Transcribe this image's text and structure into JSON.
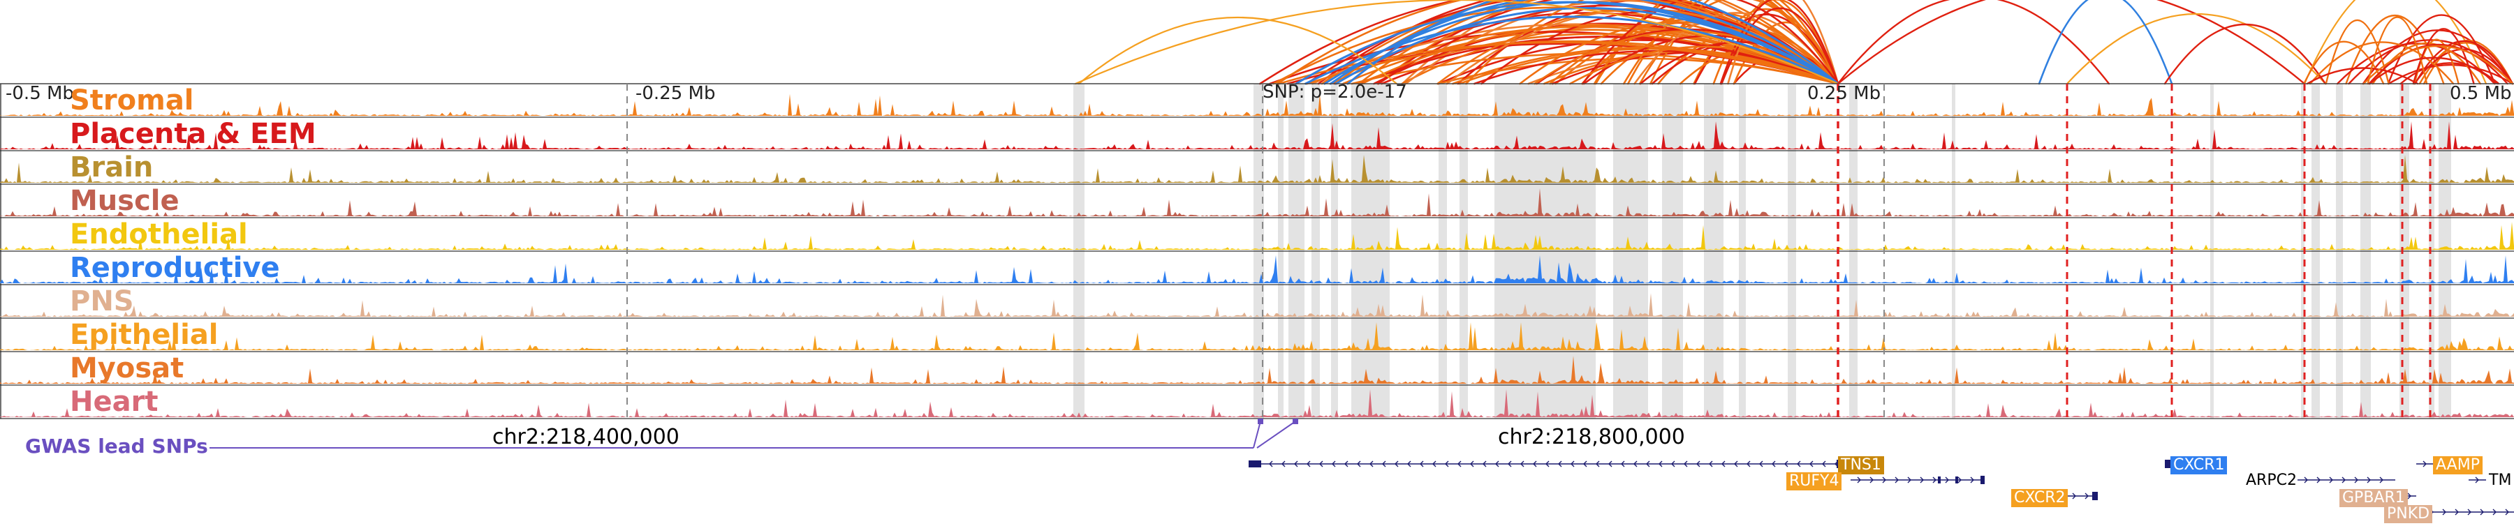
{
  "axis_ticks": [
    {
      "label": "-0.5 Mb",
      "frac": 0.0
    },
    {
      "label": "-0.25 Mb",
      "frac": 0.25
    },
    {
      "label": "0.25 Mb",
      "frac": 0.75
    },
    {
      "label": "0.5 Mb",
      "frac": 1.0
    }
  ],
  "snp_label": "SNP: p=2.0e-17",
  "tracks": [
    {
      "name": "Stromal",
      "color": "#f07f1d",
      "seed": 11
    },
    {
      "name": "Placenta & EEM",
      "color": "#d7191c",
      "seed": 23
    },
    {
      "name": "Brain",
      "color": "#b89030",
      "seed": 37
    },
    {
      "name": "Muscle",
      "color": "#c06050",
      "seed": 41
    },
    {
      "name": "Endothelial",
      "color": "#f2c70f",
      "seed": 53
    },
    {
      "name": "Reproductive",
      "color": "#2f7ff0",
      "seed": 67
    },
    {
      "name": "PNS",
      "color": "#e0b090",
      "seed": 71
    },
    {
      "name": "Epithelial",
      "color": "#f5a020",
      "seed": 83
    },
    {
      "name": "Myosat",
      "color": "#e8782a",
      "seed": 97
    },
    {
      "name": "Heart",
      "color": "#d86a78",
      "seed": 101
    }
  ],
  "coordinates": {
    "left_label": "chr2:218,400,000",
    "right_label": "chr2:218,800,000"
  },
  "gwas": {
    "label": "GWAS lead SNPs"
  },
  "genes": [
    {
      "name": "TNS1",
      "color": "#c8870a",
      "text_color": "#ffffff",
      "boxed": true
    },
    {
      "name": "RUFY4",
      "color": "#f5a020",
      "text_color": "#ffffff",
      "boxed": true
    },
    {
      "name": "CXCR2",
      "color": "#f5a020",
      "text_color": "#ffffff",
      "boxed": true
    },
    {
      "name": "CXCR1",
      "color": "#2f7ff0",
      "text_color": "#ffffff",
      "boxed": true
    },
    {
      "name": "ARPC2",
      "color": "#ffffff",
      "text_color": "#000000",
      "boxed": false
    },
    {
      "name": "AAMP",
      "color": "#f5a020",
      "text_color": "#ffffff",
      "boxed": true
    },
    {
      "name": "TM",
      "color": "#ffffff",
      "text_color": "#000000",
      "boxed": false
    },
    {
      "name": "GPBAR1",
      "color": "#e0b090",
      "text_color": "#ffffff",
      "boxed": true
    },
    {
      "name": "PNKD",
      "color": "#e0b090",
      "text_color": "#ffffff",
      "boxed": true
    }
  ],
  "colors": {
    "loop_orange": "#f07010",
    "loop_red": "#e02010",
    "loop_blue": "#3080e0",
    "highlight_gray": "#d9d9d9",
    "red_dash": "#e02020",
    "gene_strand": "#1a1a6e",
    "gwas_purple": "#6a4fc0"
  }
}
